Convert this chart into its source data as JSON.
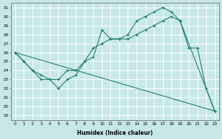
{
  "xlabel": "Humidex (Indice chaleur)",
  "bg_color": "#c8e8e8",
  "grid_color": "#ffffff",
  "line_color": "#1a7a6a",
  "line1_x": [
    0,
    1,
    2,
    3,
    4,
    5,
    6,
    7,
    8,
    9,
    10,
    11,
    12,
    13,
    14,
    15,
    16,
    17,
    18,
    19,
    20,
    21,
    22,
    23
  ],
  "line1_y": [
    26,
    25,
    24,
    23,
    23,
    22,
    23,
    23.5,
    25,
    25.5,
    28.5,
    27.5,
    27.5,
    28,
    29.5,
    30,
    30.5,
    31,
    30.5,
    29.5,
    26.5,
    26.5,
    22,
    19.5
  ],
  "line2_x": [
    0,
    1,
    2,
    3,
    4,
    5,
    6,
    7,
    8,
    9,
    10,
    11,
    12,
    13,
    14,
    15,
    16,
    17,
    18,
    19,
    23
  ],
  "line2_y": [
    26,
    25,
    24,
    23.5,
    23,
    23,
    24,
    24,
    25,
    26.5,
    27,
    27.5,
    27.5,
    27.5,
    28,
    28.5,
    29,
    29.5,
    30,
    29.5,
    19.5
  ],
  "line3_x": [
    0,
    23
  ],
  "line3_y": [
    26,
    19.5
  ],
  "ylim": [
    18.5,
    31.5
  ],
  "xlim": [
    -0.5,
    23.5
  ],
  "yticks": [
    19,
    20,
    21,
    22,
    23,
    24,
    25,
    26,
    27,
    28,
    29,
    30,
    31
  ],
  "xticks": [
    0,
    1,
    2,
    3,
    4,
    5,
    6,
    7,
    8,
    9,
    10,
    11,
    12,
    13,
    14,
    15,
    16,
    17,
    18,
    19,
    20,
    21,
    22,
    23
  ]
}
